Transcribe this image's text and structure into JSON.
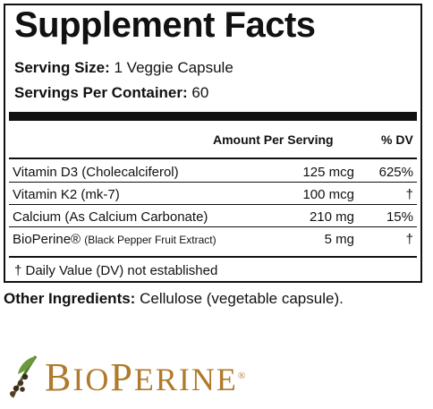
{
  "header": {
    "title": "Supplement Facts",
    "serving_size_label": "Serving Size:",
    "serving_size_value": "1 Veggie Capsule",
    "servings_label": "Servings Per Container:",
    "servings_value": "60"
  },
  "columns": {
    "amount": "Amount Per Serving",
    "dv": "% DV"
  },
  "rows": [
    {
      "name": "Vitamin D3 (Cholecalciferol)",
      "name_suffix": "",
      "amount": "125 mcg",
      "dv": "625%"
    },
    {
      "name": "Vitamin K2 (mk-7)",
      "name_suffix": "",
      "amount": "100 mcg",
      "dv": "†"
    },
    {
      "name": "Calcium (As Calcium Carbonate)",
      "name_suffix": "",
      "amount": "210 mg",
      "dv": "15%"
    },
    {
      "name": "BioPerine®",
      "name_suffix": "(Black Pepper Fruit Extract)",
      "amount": "5 mg",
      "dv": "†"
    }
  ],
  "footnote": "† Daily Value (DV) not established",
  "other_ingredients": {
    "label": "Other Ingredients:",
    "value": "Cellulose (vegetable capsule)."
  },
  "logo": {
    "b": "B",
    "io": "IO",
    "p": "P",
    "erine": "ERINE",
    "reg": "®",
    "icon_name": "pepper-vine-icon",
    "color": "#b07a2a"
  }
}
